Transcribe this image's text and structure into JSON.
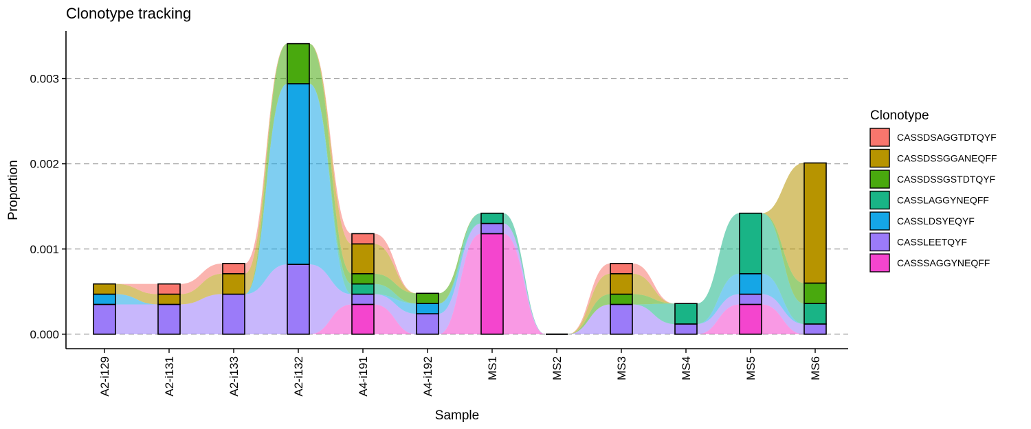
{
  "chart_data": {
    "type": "bar",
    "subtype": "stacked-alluvial",
    "title": "Clonotype tracking",
    "xlabel": "Sample",
    "ylabel": "Proportion",
    "ylim": [
      -0.00017,
      0.00356
    ],
    "yticks": [
      0,
      0.001,
      0.002,
      0.003
    ],
    "ytick_labels": [
      "0.000",
      "0.001",
      "0.002",
      "0.003"
    ],
    "grid": "horizontal-dashed",
    "legend_position": "right",
    "legend_title": "Clonotype",
    "categories": [
      "A2-i129",
      "A2-i131",
      "A2-i133",
      "A2-i132",
      "A4-i191",
      "A4-i192",
      "MS1",
      "MS2",
      "MS3",
      "MS4",
      "MS5",
      "MS6"
    ],
    "series": [
      {
        "name": "CASSDSAGGTDTQYF",
        "color": "#F8766D",
        "values": [
          0,
          0.00012,
          0.00012,
          0,
          0.00012,
          0,
          0,
          0,
          0.00012,
          0,
          0,
          0
        ]
      },
      {
        "name": "CASSDSSGGANEQFF",
        "color": "#B79400",
        "values": [
          0.00012,
          0.00012,
          0.00024,
          0,
          0.00035,
          0,
          0,
          0,
          0.00024,
          0,
          0,
          0.00141
        ]
      },
      {
        "name": "CASSDSSGSTDTQYF",
        "color": "#49A90E",
        "values": [
          0,
          0,
          0,
          0.00047,
          0.00012,
          0.00012,
          0,
          0,
          0.00012,
          0,
          0,
          0.00024
        ]
      },
      {
        "name": "CASSLAGGYNEQFF",
        "color": "#19B486",
        "values": [
          0,
          0,
          0,
          0,
          0.00012,
          0,
          0.00012,
          0,
          0,
          0.00024,
          0.00071,
          0.00024
        ]
      },
      {
        "name": "CASSLDSYEQYF",
        "color": "#15A6E6",
        "values": [
          0.00012,
          0,
          0,
          0.00212,
          0,
          0.00012,
          0,
          0,
          0,
          0,
          0.00024,
          0
        ]
      },
      {
        "name": "CASSLEETQYF",
        "color": "#9B7BF9",
        "values": [
          0.00035,
          0.00035,
          0.00047,
          0.00082,
          0.00012,
          0.00024,
          0.00012,
          0,
          0.00035,
          0.00012,
          0.00012,
          0.00012
        ]
      },
      {
        "name": "CASSSAGGYNEQFF",
        "color": "#F445CE",
        "values": [
          0,
          0,
          0,
          0,
          0.00035,
          0,
          0.00118,
          0,
          0,
          0,
          0.00035,
          0
        ]
      }
    ]
  }
}
